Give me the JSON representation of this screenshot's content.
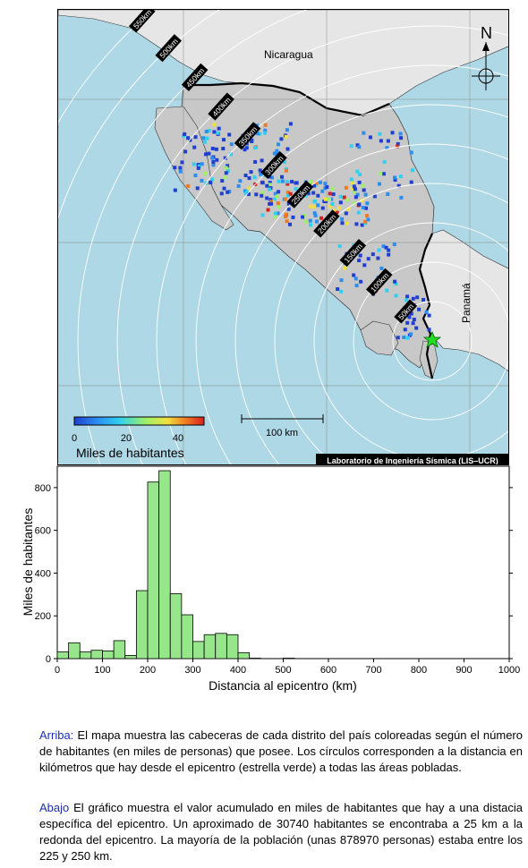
{
  "map": {
    "labels": {
      "nicaragua": "Nicaragua",
      "panama": "Panamá",
      "north": "N"
    },
    "rings": [
      "50km",
      "100km",
      "150km",
      "200km",
      "250km",
      "300km",
      "350km",
      "400km",
      "450km",
      "500km",
      "550km"
    ],
    "scalebar": {
      "label": "100 km"
    },
    "colorbar": {
      "ticks": [
        "0",
        "20",
        "40"
      ],
      "title": "Miles de habitantes",
      "colors": [
        "#1f3fd0",
        "#2a8ef0",
        "#2fd0f0",
        "#9ef06a",
        "#f0e040",
        "#f07a20",
        "#d82020"
      ]
    },
    "credit": "Laboratorio de Ingeniería Sísmica (LIS–UCR)",
    "colors": {
      "sea": "#aed8e6",
      "land_cr": "#c8c8c8",
      "land_neighbor": "#e6e6e6",
      "epicenter": "#22dd22"
    }
  },
  "chart_data": {
    "type": "bar",
    "xlabel": "Distancia al epicentro (km)",
    "ylabel": "Miles de habitantes",
    "xlim": [
      0,
      1000
    ],
    "ylim": [
      0,
      900
    ],
    "xticks": [
      0,
      100,
      200,
      300,
      400,
      500,
      600,
      700,
      800,
      900,
      1000
    ],
    "yticks": [
      0,
      200,
      400,
      600,
      800
    ],
    "bin_width": 25,
    "bins_start": [
      0,
      25,
      50,
      75,
      100,
      125,
      150,
      175,
      200,
      225,
      250,
      275,
      300,
      325,
      350,
      375,
      400,
      425,
      450,
      475,
      500
    ],
    "values": [
      31,
      74,
      31,
      39,
      36,
      84,
      15,
      318,
      826,
      879,
      304,
      205,
      80,
      112,
      118,
      112,
      28,
      2,
      0,
      0,
      2
    ],
    "bar_color": "#98e68c"
  },
  "captions": {
    "top_lead": "Arriba:",
    "top_text": " El mapa muestra las cabeceras de cada distrito del país coloreadas según el número de habitantes (en miles de personas) que posee.  Los círculos corresponden a la distancia en kilómetros que hay desde el epicentro (estrella verde) a todas las áreas pobladas.",
    "bottom_lead": "Abajo",
    "bottom_text": " El gráfico muestra el valor acumulado en miles de habitantes que hay a una distacia específica del epicentro.  Un aproximado de 30740 habitantes se encontraba a 25 km a la redonda del epicentro.  La mayoría de la población (unas 878970 personas) estaba entre los 225 y 250 km."
  }
}
